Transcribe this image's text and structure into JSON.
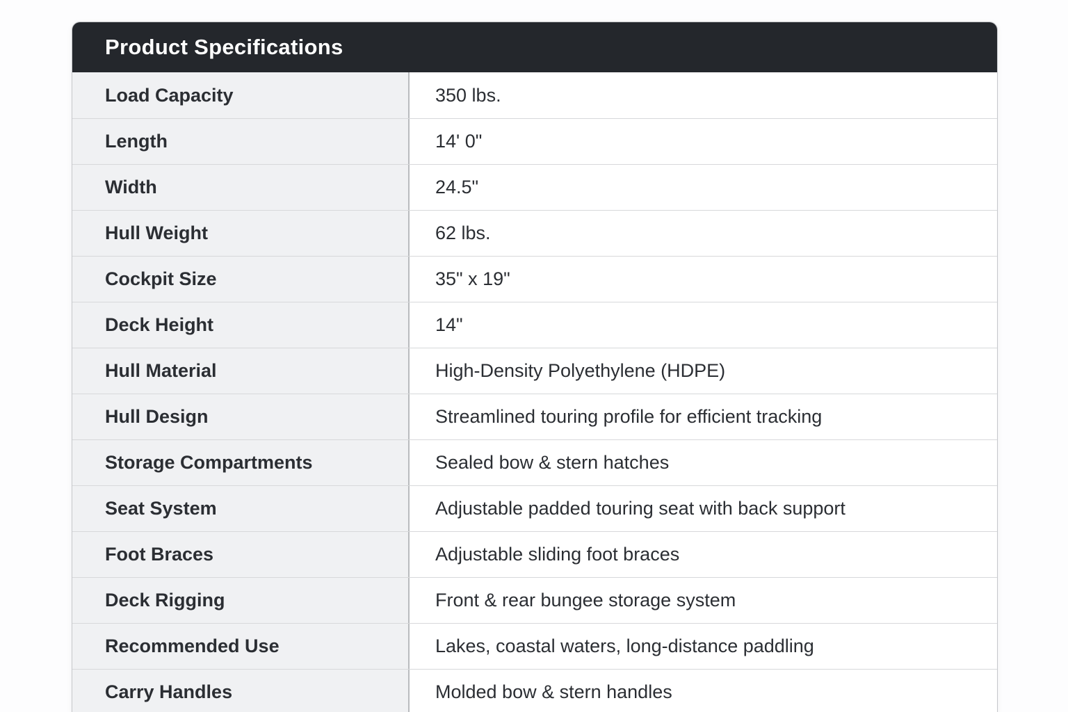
{
  "table": {
    "title": "Product Specifications",
    "rows": [
      {
        "label": "Load Capacity",
        "value": "350 lbs."
      },
      {
        "label": "Length",
        "value": "14' 0\""
      },
      {
        "label": "Width",
        "value": "24.5\""
      },
      {
        "label": "Hull Weight",
        "value": "62 lbs."
      },
      {
        "label": "Cockpit Size",
        "value": "35\" x 19\""
      },
      {
        "label": "Deck Height",
        "value": "14\""
      },
      {
        "label": "Hull Material",
        "value": "High-Density Polyethylene (HDPE)"
      },
      {
        "label": "Hull Design",
        "value": "Streamlined touring profile for efficient tracking"
      },
      {
        "label": "Storage Compartments",
        "value": "Sealed bow & stern hatches"
      },
      {
        "label": "Seat System",
        "value": "Adjustable padded touring seat with back support"
      },
      {
        "label": "Foot Braces",
        "value": "Adjustable sliding foot braces"
      },
      {
        "label": "Deck Rigging",
        "value": "Front & rear bungee storage system"
      },
      {
        "label": "Recommended Use",
        "value": "Lakes, coastal waters, long-distance paddling"
      },
      {
        "label": "Carry Handles",
        "value": "Molded bow & stern handles"
      }
    ]
  },
  "colors": {
    "header_bg": "#24272c",
    "header_text": "#ffffff",
    "label_bg": "#f0f1f3",
    "value_bg": "#ffffff",
    "text": "#2b2e33",
    "outer_border": "#c6c8cb",
    "row_divider": "#d7d8da",
    "column_divider": "#b9bbbe",
    "page_bg": "#fdfdfe"
  }
}
